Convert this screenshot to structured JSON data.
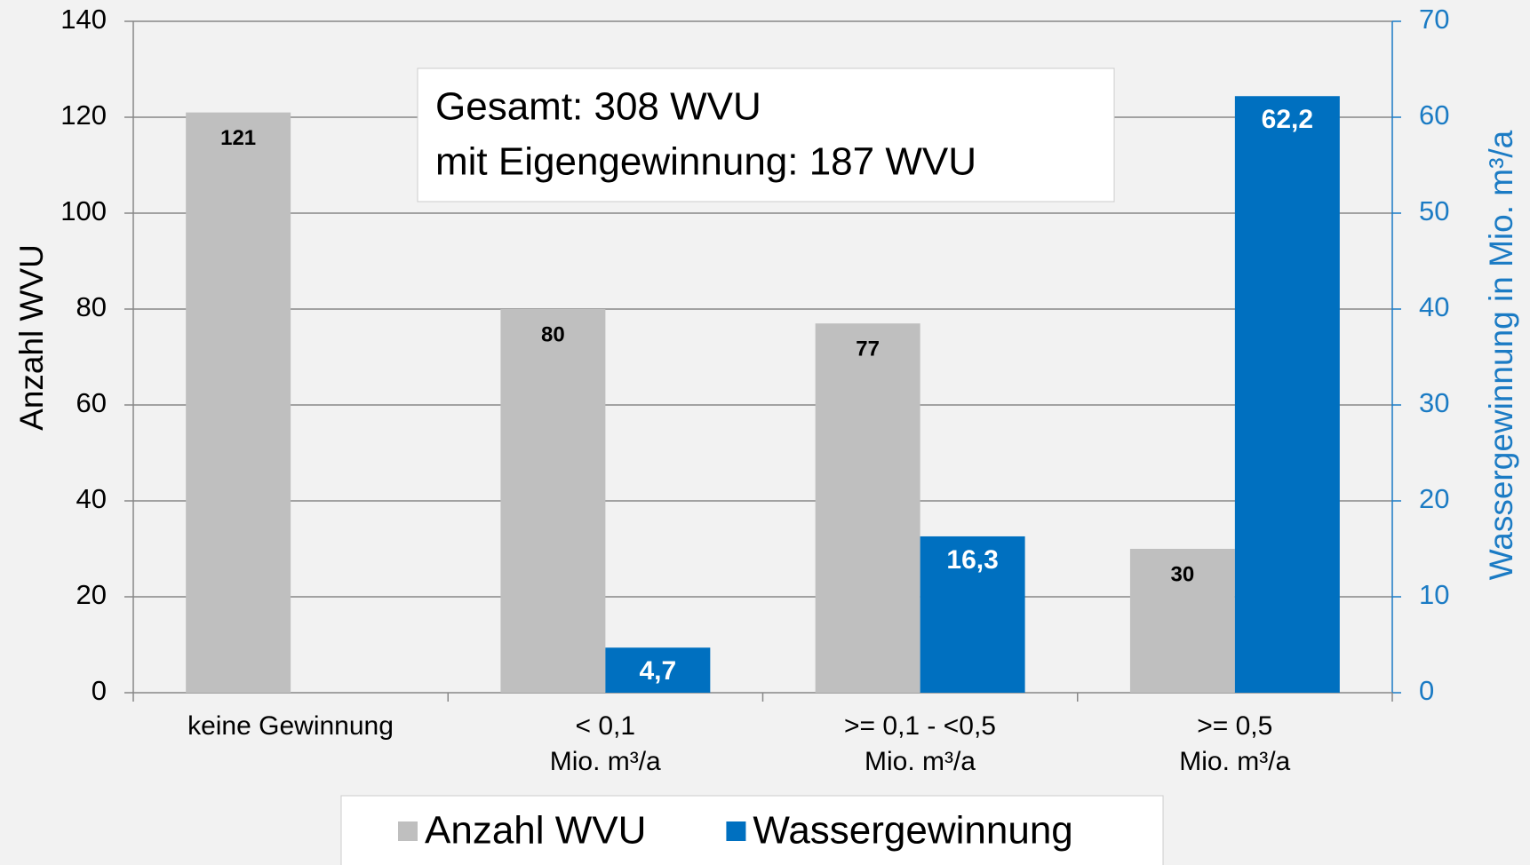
{
  "chart_data": {
    "type": "bar",
    "categories": [
      "keine Gewinnung",
      "< 0,1\nMio. m³/a",
      ">= 0,1 - <0,5\nMio. m³/a",
      ">= 0,5\nMio. m³/a"
    ],
    "series": [
      {
        "name": "Anzahl WVU",
        "color": "#bfbfbf",
        "values": [
          121,
          80,
          77,
          30
        ]
      },
      {
        "name": "Wassergewinnung",
        "color": "#0070c0",
        "axis": "y2",
        "values": [
          null,
          4.7,
          16.3,
          62.2
        ],
        "value_labels": [
          null,
          "4,7",
          "16,3",
          "62,2"
        ]
      }
    ],
    "ylabel": "Anzahl WVU",
    "y2label": "Wassergewinnung in Mio. m³/a",
    "ylim": [
      0,
      140
    ],
    "yticks": [
      0,
      20,
      40,
      60,
      80,
      100,
      120,
      140
    ],
    "y2lim": [
      0,
      70
    ],
    "y2ticks": [
      0,
      10,
      20,
      30,
      40,
      50,
      60,
      70
    ],
    "grid": true,
    "legend": "bottom",
    "annotations": [
      "Gesamt: 308 WVU",
      "mit Eigengewinnung: 187 WVU"
    ]
  }
}
